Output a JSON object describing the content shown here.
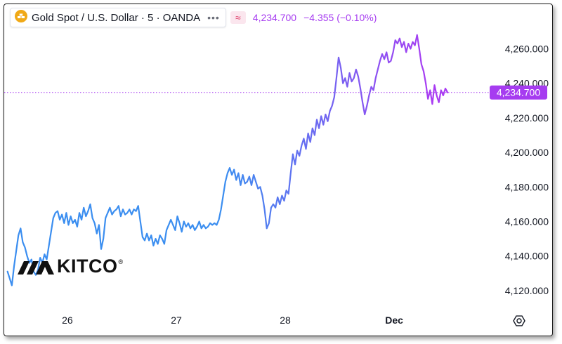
{
  "header": {
    "title": "Gold Spot / U.S. Dollar · 5 · OANDA",
    "icon": "gold-bars-icon",
    "more_icon": "ellipsis-icon",
    "approx_symbol": "≈",
    "last_price": "4,234.700",
    "change": "−4.355 (−0.10%)"
  },
  "logo": {
    "text": "KITCO",
    "registered": "®"
  },
  "price_tag": "4,234.700",
  "settings_icon": "gear-icon",
  "colors": {
    "start": "#3b8ef0",
    "end": "#a93cf2",
    "accent": "#a63cf0",
    "logo": "#111111"
  },
  "chart_data": {
    "type": "line",
    "title": "",
    "xlabel": "",
    "ylabel": "",
    "y_ticks": [
      "4,120.000",
      "4,140.000",
      "4,160.000",
      "4,180.000",
      "4,200.000",
      "4,220.000",
      "4,240.000",
      "4,260.000"
    ],
    "x_ticks": [
      {
        "label": "26",
        "pos": 1
      },
      {
        "label": "27",
        "pos": 2
      },
      {
        "label": "28",
        "pos": 3
      },
      {
        "label": "Dec",
        "pos": 4
      }
    ],
    "ylim": [
      4111,
      4272
    ],
    "xlim": [
      0.42,
      4.87
    ],
    "last_value": 4234.7,
    "grid": false,
    "gradient_line": true,
    "series": [
      {
        "points": [
          [
            0.45,
            4131
          ],
          [
            0.47,
            4127
          ],
          [
            0.49,
            4123
          ],
          [
            0.51,
            4134
          ],
          [
            0.53,
            4143
          ],
          [
            0.55,
            4152
          ],
          [
            0.57,
            4156
          ],
          [
            0.59,
            4148
          ],
          [
            0.61,
            4145
          ],
          [
            0.63,
            4140
          ],
          [
            0.65,
            4136
          ],
          [
            0.67,
            4138
          ],
          [
            0.69,
            4131
          ],
          [
            0.71,
            4129
          ],
          [
            0.73,
            4132
          ],
          [
            0.75,
            4139
          ],
          [
            0.77,
            4136
          ],
          [
            0.79,
            4141
          ],
          [
            0.81,
            4138
          ],
          [
            0.83,
            4146
          ],
          [
            0.85,
            4154
          ],
          [
            0.87,
            4162
          ],
          [
            0.89,
            4165
          ],
          [
            0.91,
            4166
          ],
          [
            0.93,
            4161
          ],
          [
            0.95,
            4164
          ],
          [
            0.97,
            4159
          ],
          [
            0.99,
            4165
          ],
          [
            1.01,
            4158
          ],
          [
            1.03,
            4163
          ],
          [
            1.05,
            4159
          ],
          [
            1.07,
            4161
          ],
          [
            1.09,
            4157
          ],
          [
            1.11,
            4165
          ],
          [
            1.13,
            4161
          ],
          [
            1.15,
            4168
          ],
          [
            1.17,
            4163
          ],
          [
            1.19,
            4166
          ],
          [
            1.21,
            4170
          ],
          [
            1.23,
            4162
          ],
          [
            1.25,
            4159
          ],
          [
            1.27,
            4153
          ],
          [
            1.29,
            4158
          ],
          [
            1.31,
            4144
          ],
          [
            1.33,
            4150
          ],
          [
            1.35,
            4162
          ],
          [
            1.37,
            4165
          ],
          [
            1.39,
            4168
          ],
          [
            1.41,
            4164
          ],
          [
            1.43,
            4166
          ],
          [
            1.45,
            4167
          ],
          [
            1.47,
            4169
          ],
          [
            1.49,
            4163
          ],
          [
            1.51,
            4167
          ],
          [
            1.53,
            4164
          ],
          [
            1.55,
            4165
          ],
          [
            1.57,
            4167
          ],
          [
            1.59,
            4164
          ],
          [
            1.61,
            4167
          ],
          [
            1.63,
            4166
          ],
          [
            1.65,
            4169
          ],
          [
            1.67,
            4160
          ],
          [
            1.69,
            4151
          ],
          [
            1.71,
            4149
          ],
          [
            1.73,
            4153
          ],
          [
            1.75,
            4149
          ],
          [
            1.77,
            4152
          ],
          [
            1.79,
            4146
          ],
          [
            1.81,
            4150
          ],
          [
            1.83,
            4147
          ],
          [
            1.85,
            4152
          ],
          [
            1.87,
            4150
          ],
          [
            1.89,
            4147
          ],
          [
            1.91,
            4155
          ],
          [
            1.93,
            4158
          ],
          [
            1.95,
            4161
          ],
          [
            1.97,
            4158
          ],
          [
            1.99,
            4155
          ],
          [
            2.01,
            4163
          ],
          [
            2.03,
            4159
          ],
          [
            2.05,
            4154
          ],
          [
            2.07,
            4160
          ],
          [
            2.09,
            4157
          ],
          [
            2.11,
            4159
          ],
          [
            2.13,
            4156
          ],
          [
            2.15,
            4158
          ],
          [
            2.17,
            4155
          ],
          [
            2.19,
            4157
          ],
          [
            2.21,
            4160
          ],
          [
            2.23,
            4156
          ],
          [
            2.25,
            4158
          ],
          [
            2.27,
            4156
          ],
          [
            2.29,
            4157
          ],
          [
            2.31,
            4159
          ],
          [
            2.33,
            4158
          ],
          [
            2.35,
            4159
          ],
          [
            2.37,
            4158
          ],
          [
            2.39,
            4161
          ],
          [
            2.41,
            4167
          ],
          [
            2.43,
            4175
          ],
          [
            2.45,
            4183
          ],
          [
            2.47,
            4188
          ],
          [
            2.49,
            4191
          ],
          [
            2.51,
            4187
          ],
          [
            2.53,
            4190
          ],
          [
            2.55,
            4184
          ],
          [
            2.57,
            4188
          ],
          [
            2.59,
            4181
          ],
          [
            2.61,
            4187
          ],
          [
            2.63,
            4182
          ],
          [
            2.65,
            4183
          ],
          [
            2.67,
            4186
          ],
          [
            2.69,
            4181
          ],
          [
            2.71,
            4187
          ],
          [
            2.73,
            4183
          ],
          [
            2.75,
            4179
          ],
          [
            2.77,
            4180
          ],
          [
            2.79,
            4175
          ],
          [
            2.81,
            4167
          ],
          [
            2.83,
            4156
          ],
          [
            2.85,
            4159
          ],
          [
            2.87,
            4168
          ],
          [
            2.89,
            4170
          ],
          [
            2.91,
            4168
          ],
          [
            2.93,
            4174
          ],
          [
            2.95,
            4170
          ],
          [
            2.97,
            4175
          ],
          [
            2.99,
            4172
          ],
          [
            3.01,
            4178
          ],
          [
            3.03,
            4176
          ],
          [
            3.05,
            4188
          ],
          [
            3.07,
            4199
          ],
          [
            3.09,
            4193
          ],
          [
            3.11,
            4201
          ],
          [
            3.13,
            4198
          ],
          [
            3.15,
            4204
          ],
          [
            3.17,
            4208
          ],
          [
            3.19,
            4202
          ],
          [
            3.21,
            4211
          ],
          [
            3.23,
            4206
          ],
          [
            3.25,
            4214
          ],
          [
            3.27,
            4210
          ],
          [
            3.29,
            4219
          ],
          [
            3.31,
            4214
          ],
          [
            3.33,
            4221
          ],
          [
            3.35,
            4216
          ],
          [
            3.37,
            4222
          ],
          [
            3.39,
            4218
          ],
          [
            3.41,
            4224
          ],
          [
            3.43,
            4227
          ],
          [
            3.45,
            4232
          ],
          [
            3.47,
            4243
          ],
          [
            3.49,
            4255
          ],
          [
            3.51,
            4249
          ],
          [
            3.53,
            4240
          ],
          [
            3.55,
            4243
          ],
          [
            3.57,
            4238
          ],
          [
            3.59,
            4246
          ],
          [
            3.61,
            4241
          ],
          [
            3.63,
            4243
          ],
          [
            3.65,
            4248
          ],
          [
            3.67,
            4244
          ],
          [
            3.69,
            4237
          ],
          [
            3.71,
            4229
          ],
          [
            3.73,
            4222
          ],
          [
            3.75,
            4227
          ],
          [
            3.77,
            4233
          ],
          [
            3.79,
            4238
          ],
          [
            3.81,
            4236
          ],
          [
            3.83,
            4243
          ],
          [
            3.85,
            4248
          ],
          [
            3.87,
            4253
          ],
          [
            3.89,
            4257
          ],
          [
            3.91,
            4254
          ],
          [
            3.93,
            4258
          ],
          [
            3.95,
            4252
          ],
          [
            3.97,
            4253
          ],
          [
            3.99,
            4258
          ],
          [
            4.01,
            4265
          ],
          [
            4.03,
            4263
          ],
          [
            4.05,
            4266
          ],
          [
            4.07,
            4261
          ],
          [
            4.09,
            4264
          ],
          [
            4.11,
            4258
          ],
          [
            4.13,
            4263
          ],
          [
            4.15,
            4260
          ],
          [
            4.17,
            4264
          ],
          [
            4.19,
            4262
          ],
          [
            4.21,
            4268
          ],
          [
            4.23,
            4260
          ],
          [
            4.25,
            4251
          ],
          [
            4.27,
            4247
          ],
          [
            4.29,
            4240
          ],
          [
            4.31,
            4231
          ],
          [
            4.33,
            4236
          ],
          [
            4.35,
            4228
          ],
          [
            4.37,
            4239
          ],
          [
            4.39,
            4233
          ],
          [
            4.41,
            4229
          ],
          [
            4.43,
            4236
          ],
          [
            4.45,
            4233
          ],
          [
            4.47,
            4237
          ],
          [
            4.49,
            4234.7
          ]
        ]
      }
    ]
  }
}
